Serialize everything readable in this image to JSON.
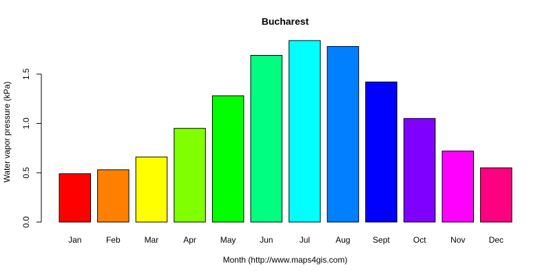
{
  "chart_data": {
    "type": "bar",
    "title": "Bucharest",
    "xlabel": "Month (http://www.maps4gis.com)",
    "ylabel": "Water vapor pressure (kPa)",
    "categories": [
      "Jan",
      "Feb",
      "Mar",
      "Apr",
      "May",
      "Jun",
      "Jul",
      "Aug",
      "Sept",
      "Oct",
      "Nov",
      "Dec"
    ],
    "values": [
      0.49,
      0.53,
      0.66,
      0.95,
      1.28,
      1.69,
      1.84,
      1.78,
      1.42,
      1.05,
      0.72,
      0.55
    ],
    "colors": [
      "#ff0000",
      "#ff8000",
      "#ffff00",
      "#80ff00",
      "#00ff00",
      "#00ff80",
      "#00ffff",
      "#0080ff",
      "#0000ff",
      "#8000ff",
      "#ff00ff",
      "#ff0080"
    ],
    "yticks": [
      "0.0",
      "0.5",
      "1.0",
      "1.5"
    ],
    "ylim": [
      0,
      1.84
    ],
    "grid": false,
    "legend": "none"
  }
}
